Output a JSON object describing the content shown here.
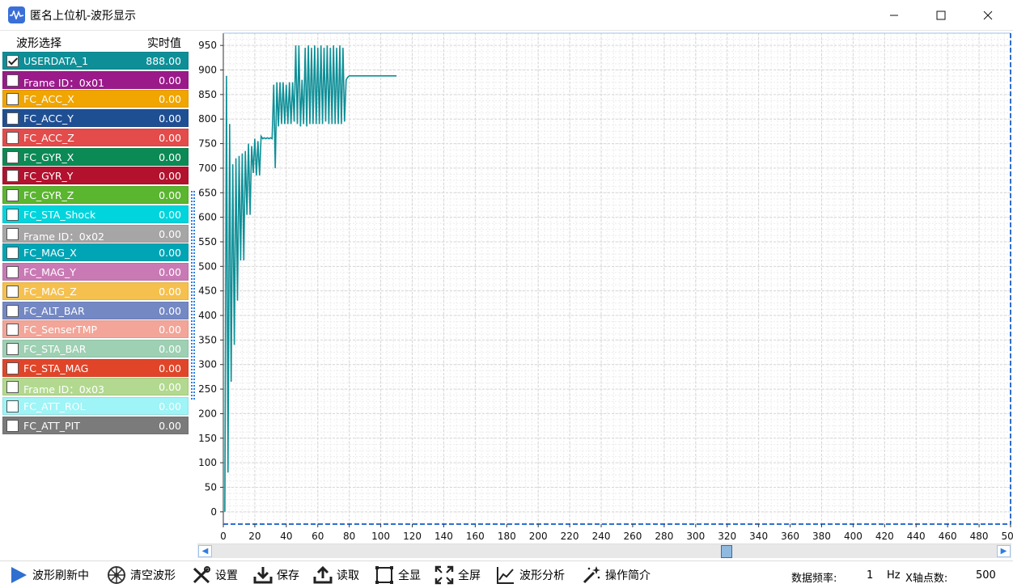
{
  "window": {
    "title": "匿名上位机-波形显示"
  },
  "left_panel": {
    "header_select": "波形选择",
    "header_value": "实时值",
    "items": [
      {
        "label": "USERDATA_1",
        "value": "888.00",
        "color": "#0e8f97",
        "checked": true,
        "text_color": "#ffffff"
      },
      {
        "label": "Frame ID：0x01",
        "value": "0.00",
        "color": "#9b1a8a",
        "checked": false,
        "text_color": "#ffffff"
      },
      {
        "label": "FC_ACC_X",
        "value": "0.00",
        "color": "#f0a500",
        "checked": false,
        "text_color": "#ffffff"
      },
      {
        "label": "FC_ACC_Y",
        "value": "0.00",
        "color": "#1f4f93",
        "checked": false,
        "text_color": "#ffffff"
      },
      {
        "label": "FC_ACC_Z",
        "value": "0.00",
        "color": "#e44b4b",
        "checked": false,
        "text_color": "#ffffff"
      },
      {
        "label": "FC_GYR_X",
        "value": "0.00",
        "color": "#0b8a55",
        "checked": false,
        "text_color": "#ffffff"
      },
      {
        "label": "FC_GYR_Y",
        "value": "0.00",
        "color": "#b3112e",
        "checked": false,
        "text_color": "#ffffff"
      },
      {
        "label": "FC_GYR_Z",
        "value": "0.00",
        "color": "#5ab52f",
        "checked": false,
        "text_color": "#ffffff"
      },
      {
        "label": "FC_STA_Shock",
        "value": "0.00",
        "color": "#00d4dc",
        "checked": false,
        "text_color": "#ffffff"
      },
      {
        "label": "Frame ID：0x02",
        "value": "0.00",
        "color": "#a6a6a6",
        "checked": false,
        "text_color": "#ffffff"
      },
      {
        "label": "FC_MAG_X",
        "value": "0.00",
        "color": "#00a5b5",
        "checked": false,
        "text_color": "#ffffff"
      },
      {
        "label": "FC_MAG_Y",
        "value": "0.00",
        "color": "#c97ab5",
        "checked": false,
        "text_color": "#ffffff"
      },
      {
        "label": "FC_MAG_Z",
        "value": "0.00",
        "color": "#f5c04d",
        "checked": false,
        "text_color": "#ffffff"
      },
      {
        "label": "FC_ALT_BAR",
        "value": "0.00",
        "color": "#7488c4",
        "checked": false,
        "text_color": "#ffffff"
      },
      {
        "label": "FC_SenserTMP",
        "value": "0.00",
        "color": "#f2a598",
        "checked": false,
        "text_color": "#ffffff"
      },
      {
        "label": "FC_STA_BAR",
        "value": "0.00",
        "color": "#9ed0b3",
        "checked": false,
        "text_color": "#ffffff"
      },
      {
        "label": "FC_STA_MAG",
        "value": "0.00",
        "color": "#e0452a",
        "checked": false,
        "text_color": "#ffffff"
      },
      {
        "label": "Frame ID：0x03",
        "value": "0.00",
        "color": "#b2d98f",
        "checked": false,
        "text_color": "#ffffff"
      },
      {
        "label": "FC_ATT_ROL",
        "value": "0.00",
        "color": "#9ef4f6",
        "checked": false,
        "text_color": "#ffffff"
      },
      {
        "label": "FC_ATT_PIT",
        "value": "0.00",
        "color": "#7b7b7b",
        "checked": false,
        "text_color": "#ffffff"
      }
    ]
  },
  "chart_data": {
    "type": "line",
    "title": "",
    "xlabel": "",
    "ylabel": "",
    "xlim": [
      0,
      500
    ],
    "ylim": [
      -25,
      975
    ],
    "x_ticks": [
      0,
      20,
      40,
      60,
      80,
      100,
      120,
      140,
      160,
      180,
      200,
      220,
      240,
      260,
      280,
      300,
      320,
      340,
      360,
      380,
      400,
      420,
      440,
      460,
      480,
      500
    ],
    "y_ticks": [
      0,
      50,
      100,
      150,
      200,
      250,
      300,
      350,
      400,
      450,
      500,
      550,
      600,
      650,
      700,
      750,
      800,
      850,
      900,
      950
    ],
    "grid": true,
    "series": [
      {
        "name": "USERDATA_1",
        "color": "#0e8f97",
        "x": [
          1,
          2,
          3,
          4,
          5,
          6,
          7,
          8,
          9,
          10,
          11,
          12,
          13,
          14,
          15,
          16,
          17,
          18,
          19,
          20,
          21,
          22,
          23,
          24,
          25,
          26,
          27,
          28,
          29,
          30,
          31,
          32,
          33,
          34,
          35,
          36,
          37,
          38,
          39,
          40,
          41,
          42,
          43,
          44,
          45,
          46,
          47,
          48,
          49,
          50,
          51,
          52,
          53,
          54,
          55,
          56,
          57,
          58,
          59,
          60,
          61,
          62,
          63,
          64,
          65,
          66,
          67,
          68,
          69,
          70,
          71,
          72,
          73,
          74,
          75,
          76,
          77,
          78,
          79,
          80,
          82,
          85,
          90,
          100,
          110
        ],
        "values": [
          0,
          888,
          80,
          790,
          265,
          708,
          340,
          720,
          430,
          725,
          512,
          730,
          512,
          735,
          605,
          750,
          605,
          745,
          690,
          760,
          685,
          755,
          685,
          765,
          760,
          762,
          760,
          762,
          760,
          762,
          760,
          870,
          700,
          875,
          785,
          875,
          790,
          875,
          790,
          870,
          790,
          875,
          790,
          875,
          795,
          950,
          790,
          950,
          785,
          880,
          790,
          945,
          785,
          950,
          790,
          945,
          790,
          950,
          790,
          945,
          790,
          950,
          790,
          945,
          795,
          950,
          790,
          945,
          790,
          950,
          790,
          945,
          790,
          950,
          790,
          945,
          795,
          880,
          885,
          888,
          888,
          888,
          888,
          888,
          888
        ]
      }
    ]
  },
  "toolbar": {
    "refresh": "波形刷新中",
    "clear": "清空波形",
    "settings": "设置",
    "save": "保存",
    "load": "读取",
    "show_all": "全显",
    "fullscreen": "全屏",
    "analysis": "波形分析",
    "help": "操作简介",
    "freq_label": "数据频率:",
    "freq_value": "1",
    "freq_unit": "Hz",
    "xpoints_label": "X轴点数:",
    "xpoints_value": "500"
  }
}
